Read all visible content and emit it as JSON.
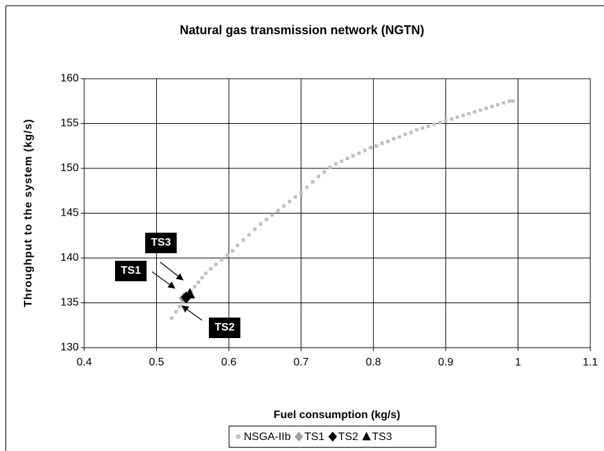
{
  "chart_data": {
    "type": "scatter",
    "title": "Natural gas transmission network (NGTN)",
    "xlabel": "Fuel consumption (kg/s)",
    "ylabel": "Throughput to the system (kg/s)",
    "xlim": [
      0.4,
      1.1
    ],
    "xticks": [
      0.4,
      0.5,
      0.6,
      0.7,
      0.8,
      0.9,
      1,
      1.1
    ],
    "ylim": [
      130,
      160
    ],
    "yticks": [
      130,
      135,
      140,
      145,
      150,
      155,
      160
    ],
    "grid": true,
    "legend": "bottom",
    "annotations": [
      "TS3",
      "TS1",
      "TS2"
    ],
    "series": [
      {
        "name": "NSGA-IIb",
        "color": "#c0c0c0",
        "marker": "square",
        "x": [
          0.521,
          0.527,
          0.532,
          0.537,
          0.542,
          0.548,
          0.553,
          0.558,
          0.563,
          0.568,
          0.575,
          0.582,
          0.59,
          0.598,
          0.605,
          0.612,
          0.62,
          0.628,
          0.636,
          0.644,
          0.652,
          0.66,
          0.668,
          0.676,
          0.684,
          0.692,
          0.7,
          0.708,
          0.716,
          0.724,
          0.732,
          0.74,
          0.748,
          0.756,
          0.764,
          0.772,
          0.78,
          0.788,
          0.796,
          0.804,
          0.812,
          0.82,
          0.828,
          0.836,
          0.844,
          0.852,
          0.86,
          0.868,
          0.876,
          0.884,
          0.892,
          0.9,
          0.908,
          0.916,
          0.924,
          0.932,
          0.94,
          0.948,
          0.956,
          0.964,
          0.972,
          0.98,
          0.988,
          0.993
        ],
        "y": [
          133.3,
          134.0,
          134.6,
          135.1,
          135.7,
          136.3,
          136.8,
          137.3,
          137.8,
          138.3,
          138.8,
          139.3,
          139.8,
          140.3,
          140.8,
          141.4,
          142.0,
          142.6,
          143.2,
          143.8,
          144.3,
          144.8,
          145.3,
          145.8,
          146.3,
          146.8,
          147.3,
          147.9,
          148.5,
          149.1,
          149.6,
          150.1,
          150.5,
          150.8,
          151.1,
          151.4,
          151.7,
          152.0,
          152.3,
          152.5,
          152.8,
          153.0,
          153.3,
          153.5,
          153.8,
          154.0,
          154.3,
          154.5,
          154.7,
          154.9,
          155.1,
          155.3,
          155.5,
          155.7,
          155.9,
          156.1,
          156.3,
          156.5,
          156.7,
          156.9,
          157.1,
          157.3,
          157.5,
          157.5
        ]
      },
      {
        "name": "TS1",
        "color": "#a0a0a0",
        "marker": "diamond",
        "x": [
          0.538
        ],
        "y": [
          135.5
        ]
      },
      {
        "name": "TS2",
        "color": "#000000",
        "marker": "diamond",
        "x": [
          0.541
        ],
        "y": [
          135.6
        ]
      },
      {
        "name": "TS3",
        "color": "#000000",
        "marker": "triangle",
        "x": [
          0.546
        ],
        "y": [
          136.0
        ]
      }
    ]
  }
}
